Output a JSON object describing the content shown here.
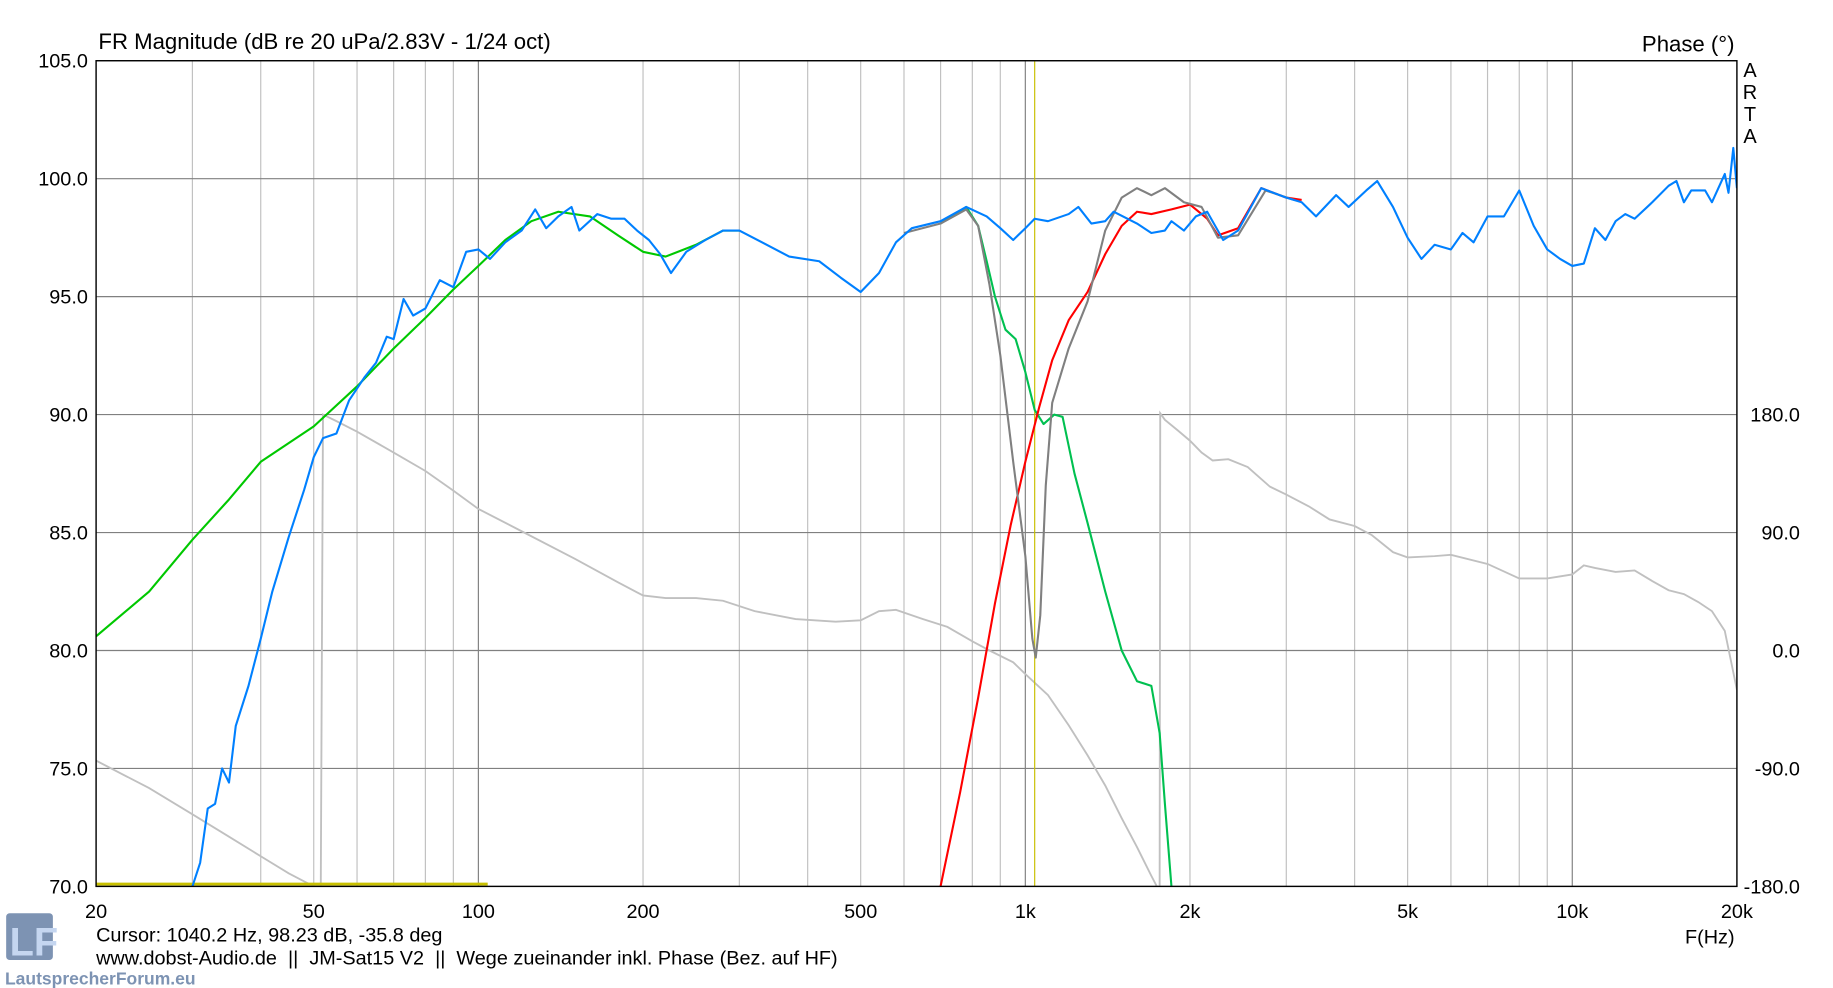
{
  "chart_data": {
    "type": "line",
    "title": "FR Magnitude (dB re 20 uPa/2.83V - 1/24 oct)",
    "right_axis_title": "Phase (°)",
    "brand_vertical": "ARTA",
    "xlabel": "F(Hz)",
    "x_scale": "log",
    "xlim": [
      20,
      20000
    ],
    "ylim": [
      70,
      105
    ],
    "y2lim": [
      -180,
      180
    ],
    "grid": true,
    "x_ticks": [
      {
        "value": 20,
        "label": "20"
      },
      {
        "value": 50,
        "label": "50"
      },
      {
        "value": 100,
        "label": "100"
      },
      {
        "value": 200,
        "label": "200"
      },
      {
        "value": 500,
        "label": "500"
      },
      {
        "value": 1000,
        "label": "1k"
      },
      {
        "value": 2000,
        "label": "2k"
      },
      {
        "value": 5000,
        "label": "5k"
      },
      {
        "value": 10000,
        "label": "10k"
      },
      {
        "value": 20000,
        "label": "20k"
      }
    ],
    "y_ticks": [
      {
        "value": 105,
        "label": "105.0"
      },
      {
        "value": 100,
        "label": "100.0"
      },
      {
        "value": 95,
        "label": "95.0"
      },
      {
        "value": 90,
        "label": "90.0"
      },
      {
        "value": 85,
        "label": "85.0"
      },
      {
        "value": 80,
        "label": "80.0"
      },
      {
        "value": 75,
        "label": "75.0"
      },
      {
        "value": 70,
        "label": "70.0"
      }
    ],
    "y2_ticks": [
      {
        "value": 180,
        "label": "180.0"
      },
      {
        "value": 90,
        "label": "90.0"
      },
      {
        "value": 0,
        "label": "0.0"
      },
      {
        "value": -90,
        "label": "-90.0"
      },
      {
        "value": -180,
        "label": "-180.0"
      }
    ],
    "cursor": {
      "freq": 1040.2,
      "color": "#c8c000"
    },
    "series": [
      {
        "axis": "left",
        "color": "#00c800",
        "points": [
          [
            20,
            80.6
          ],
          [
            25,
            82.5
          ],
          [
            30,
            84.7
          ],
          [
            35,
            86.4
          ],
          [
            40,
            88
          ],
          [
            50,
            89.5
          ],
          [
            60,
            91.2
          ],
          [
            70,
            92.8
          ],
          [
            80,
            94.1
          ],
          [
            90,
            95.3
          ],
          [
            100,
            96.3
          ],
          [
            112,
            97.4
          ],
          [
            125,
            98.2
          ],
          [
            140,
            98.6
          ],
          [
            160,
            98.4
          ],
          [
            180,
            97.6
          ],
          [
            200,
            96.9
          ],
          [
            220,
            96.7
          ],
          [
            250,
            97.2
          ],
          [
            280,
            97.8
          ],
          [
            300,
            97.8
          ]
        ]
      },
      {
        "axis": "left",
        "color": "#00c050",
        "points": [
          [
            700,
            98.1
          ],
          [
            780,
            98.8
          ],
          [
            820,
            98.0
          ],
          [
            850,
            96.5
          ],
          [
            880,
            95.0
          ],
          [
            920,
            93.6
          ],
          [
            960,
            93.2
          ],
          [
            1000,
            91.8
          ],
          [
            1040,
            90.2
          ],
          [
            1080,
            89.6
          ],
          [
            1130,
            90.0
          ],
          [
            1170,
            89.9
          ],
          [
            1230,
            87.5
          ],
          [
            1300,
            85.4
          ],
          [
            1400,
            82.5
          ],
          [
            1500,
            80.0
          ],
          [
            1600,
            78.7
          ],
          [
            1700,
            78.5
          ],
          [
            1760,
            76.5
          ],
          [
            1800,
            73.5
          ],
          [
            1850,
            70
          ]
        ]
      },
      {
        "axis": "left",
        "color": "#ff0000",
        "points": [
          [
            700,
            70
          ],
          [
            760,
            74
          ],
          [
            820,
            78
          ],
          [
            880,
            82
          ],
          [
            940,
            85.3
          ],
          [
            1000,
            88.0
          ],
          [
            1060,
            90.3
          ],
          [
            1120,
            92.3
          ],
          [
            1200,
            94.0
          ],
          [
            1300,
            95.2
          ],
          [
            1400,
            96.8
          ],
          [
            1500,
            98.0
          ],
          [
            1600,
            98.6
          ],
          [
            1700,
            98.5
          ],
          [
            1850,
            98.7
          ],
          [
            2000,
            98.9
          ],
          [
            2150,
            98.3
          ],
          [
            2250,
            97.6
          ],
          [
            2450,
            97.9
          ],
          [
            2700,
            99.6
          ],
          [
            3000,
            99.2
          ],
          [
            3200,
            99.1
          ]
        ]
      },
      {
        "axis": "left",
        "color": "#808080",
        "points": [
          [
            600,
            97.7
          ],
          [
            700,
            98.1
          ],
          [
            780,
            98.7
          ],
          [
            820,
            98.0
          ],
          [
            860,
            95.5
          ],
          [
            900,
            92.5
          ],
          [
            950,
            88.0
          ],
          [
            1000,
            84.0
          ],
          [
            1030,
            80.5
          ],
          [
            1045,
            79.7
          ],
          [
            1065,
            81.5
          ],
          [
            1090,
            87.0
          ],
          [
            1120,
            90.5
          ],
          [
            1200,
            92.8
          ],
          [
            1300,
            94.8
          ],
          [
            1400,
            97.8
          ],
          [
            1500,
            99.2
          ],
          [
            1600,
            99.6
          ],
          [
            1700,
            99.3
          ],
          [
            1800,
            99.6
          ],
          [
            1950,
            99.0
          ],
          [
            2100,
            98.8
          ],
          [
            2250,
            97.5
          ],
          [
            2450,
            97.6
          ],
          [
            2750,
            99.5
          ],
          [
            3100,
            99.1
          ]
        ]
      },
      {
        "axis": "left",
        "color": "#0080ff",
        "points": [
          [
            30,
            70
          ],
          [
            31,
            71
          ],
          [
            32,
            73.3
          ],
          [
            33,
            73.5
          ],
          [
            34,
            75
          ],
          [
            35,
            74.4
          ],
          [
            36,
            76.8
          ],
          [
            38,
            78.5
          ],
          [
            40,
            80.5
          ],
          [
            42,
            82.5
          ],
          [
            45,
            84.8
          ],
          [
            48,
            86.8
          ],
          [
            50,
            88.2
          ],
          [
            52,
            89
          ],
          [
            55,
            89.2
          ],
          [
            58,
            90.6
          ],
          [
            62,
            91.6
          ],
          [
            65,
            92.2
          ],
          [
            68,
            93.3
          ],
          [
            70,
            93.2
          ],
          [
            73,
            94.9
          ],
          [
            76,
            94.2
          ],
          [
            80,
            94.5
          ],
          [
            85,
            95.7
          ],
          [
            90,
            95.4
          ],
          [
            95,
            96.9
          ],
          [
            100,
            97.0
          ],
          [
            105,
            96.6
          ],
          [
            112,
            97.3
          ],
          [
            120,
            97.8
          ],
          [
            127,
            98.7
          ],
          [
            133,
            97.9
          ],
          [
            140,
            98.4
          ],
          [
            148,
            98.8
          ],
          [
            153,
            97.8
          ],
          [
            165,
            98.5
          ],
          [
            175,
            98.3
          ],
          [
            185,
            98.3
          ],
          [
            195,
            97.8
          ],
          [
            205,
            97.4
          ],
          [
            215,
            96.8
          ],
          [
            225,
            96.0
          ],
          [
            240,
            96.9
          ],
          [
            260,
            97.4
          ],
          [
            280,
            97.8
          ],
          [
            300,
            97.8
          ],
          [
            330,
            97.3
          ],
          [
            370,
            96.7
          ],
          [
            420,
            96.5
          ],
          [
            460,
            95.8
          ],
          [
            500,
            95.2
          ],
          [
            540,
            96.0
          ],
          [
            580,
            97.3
          ],
          [
            620,
            97.9
          ],
          [
            700,
            98.2
          ],
          [
            780,
            98.8
          ],
          [
            850,
            98.4
          ],
          [
            900,
            97.9
          ],
          [
            950,
            97.4
          ],
          [
            1000,
            97.9
          ],
          [
            1040,
            98.3
          ],
          [
            1100,
            98.2
          ],
          [
            1200,
            98.5
          ],
          [
            1250,
            98.8
          ],
          [
            1320,
            98.1
          ],
          [
            1400,
            98.2
          ],
          [
            1450,
            98.6
          ],
          [
            1600,
            98.1
          ],
          [
            1700,
            97.7
          ],
          [
            1800,
            97.8
          ],
          [
            1850,
            98.2
          ],
          [
            1950,
            97.8
          ],
          [
            2050,
            98.4
          ],
          [
            2150,
            98.6
          ],
          [
            2300,
            97.4
          ],
          [
            2450,
            97.8
          ],
          [
            2700,
            99.6
          ],
          [
            3000,
            99.2
          ],
          [
            3200,
            99.0
          ],
          [
            3400,
            98.4
          ],
          [
            3700,
            99.3
          ],
          [
            3900,
            98.8
          ],
          [
            4200,
            99.5
          ],
          [
            4400,
            99.9
          ],
          [
            4700,
            98.8
          ],
          [
            5000,
            97.5
          ],
          [
            5300,
            96.6
          ],
          [
            5600,
            97.2
          ],
          [
            6000,
            97.0
          ],
          [
            6300,
            97.7
          ],
          [
            6600,
            97.3
          ],
          [
            7000,
            98.4
          ],
          [
            7500,
            98.4
          ],
          [
            8000,
            99.5
          ],
          [
            8500,
            98.0
          ],
          [
            9000,
            97.0
          ],
          [
            9500,
            96.6
          ],
          [
            10000,
            96.3
          ],
          [
            10500,
            96.4
          ],
          [
            11000,
            97.9
          ],
          [
            11500,
            97.4
          ],
          [
            12000,
            98.2
          ],
          [
            12500,
            98.5
          ],
          [
            13000,
            98.3
          ],
          [
            14000,
            99.0
          ],
          [
            15000,
            99.7
          ],
          [
            15500,
            99.9
          ],
          [
            16000,
            99.0
          ],
          [
            16500,
            99.5
          ],
          [
            17500,
            99.5
          ],
          [
            18000,
            99.0
          ],
          [
            18500,
            99.6
          ],
          [
            19000,
            100.2
          ],
          [
            19300,
            99.4
          ],
          [
            19700,
            101.3
          ],
          [
            20000,
            99.6
          ]
        ]
      }
    ],
    "phase_series": {
      "axis": "right",
      "color": "#c0c0c0",
      "segments": [
        [
          [
            20,
            -84
          ],
          [
            25,
            -105
          ],
          [
            30,
            -125
          ],
          [
            35,
            -142
          ],
          [
            40,
            -157
          ],
          [
            45,
            -170
          ],
          [
            50,
            -180
          ]
        ],
        [
          [
            51.5,
            -180
          ],
          [
            52,
            180
          ],
          [
            55,
            175
          ],
          [
            60,
            167
          ],
          [
            70,
            151
          ],
          [
            80,
            137
          ],
          [
            90,
            122
          ],
          [
            100,
            108
          ],
          [
            120,
            91
          ],
          [
            150,
            70
          ],
          [
            180,
            52
          ],
          [
            200,
            42
          ],
          [
            220,
            40
          ],
          [
            250,
            40
          ],
          [
            280,
            38
          ],
          [
            320,
            30
          ],
          [
            380,
            24
          ],
          [
            450,
            22
          ],
          [
            500,
            23
          ],
          [
            540,
            30
          ],
          [
            580,
            31
          ],
          [
            650,
            24
          ],
          [
            720,
            18
          ],
          [
            800,
            7
          ],
          [
            860,
            0
          ],
          [
            950,
            -9
          ],
          [
            1000,
            -18
          ],
          [
            1100,
            -34
          ],
          [
            1200,
            -57
          ],
          [
            1300,
            -80
          ],
          [
            1400,
            -103
          ],
          [
            1500,
            -128
          ],
          [
            1600,
            -150
          ],
          [
            1700,
            -172
          ],
          [
            1740,
            -180
          ]
        ],
        [
          [
            1760,
            -180
          ],
          [
            1765,
            181
          ],
          [
            1800,
            176
          ],
          [
            1900,
            168
          ],
          [
            2000,
            160
          ],
          [
            2100,
            151
          ],
          [
            2200,
            145
          ],
          [
            2350,
            146
          ],
          [
            2550,
            140
          ],
          [
            2800,
            125
          ],
          [
            3000,
            119
          ],
          [
            3300,
            110
          ],
          [
            3600,
            100
          ],
          [
            4000,
            95
          ],
          [
            4300,
            88
          ],
          [
            4700,
            75
          ],
          [
            5000,
            71
          ],
          [
            5600,
            72
          ],
          [
            6000,
            73
          ],
          [
            7000,
            66
          ],
          [
            8000,
            55
          ],
          [
            9000,
            55
          ],
          [
            10000,
            58
          ],
          [
            10500,
            65
          ],
          [
            11000,
            63
          ],
          [
            12000,
            60
          ],
          [
            13000,
            61
          ],
          [
            14000,
            53
          ],
          [
            15000,
            46
          ],
          [
            16000,
            43
          ],
          [
            17000,
            37
          ],
          [
            18000,
            30
          ],
          [
            19000,
            15
          ],
          [
            20000,
            -30
          ]
        ]
      ]
    },
    "reference_line": {
      "color": "#c8c000",
      "from": 20,
      "to": 104,
      "value": 70
    }
  },
  "footer": {
    "cursor_readout": "Cursor: 1040.2 Hz, 98.23 dB, -35.8 deg",
    "caption": "www.dobst-Audio.de  ||  JM-Sat15 V2  ||  Wege zueinander inkl. Phase (Bez. auf HF)",
    "watermark": "LautsprecherForum.eu",
    "logo": "LF"
  }
}
